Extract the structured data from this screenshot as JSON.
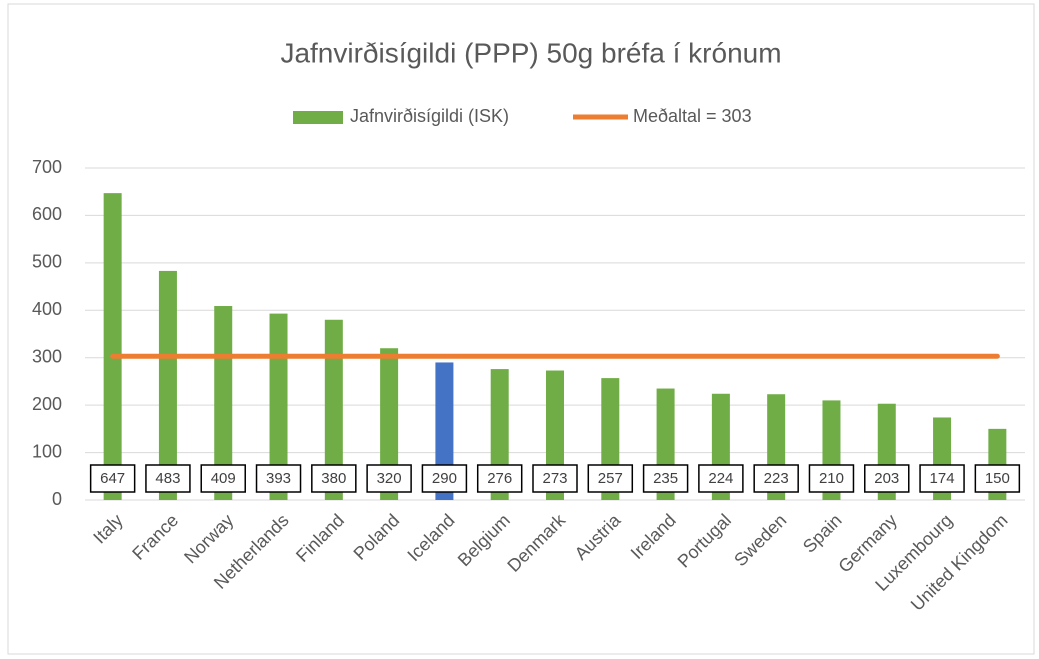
{
  "chart_data": {
    "type": "bar",
    "title": "Jafnvirðisígildi (PPP) 50g bréfa í krónum",
    "categories": [
      "Italy",
      "France",
      "Norway",
      "Netherlands",
      "Finland",
      "Poland",
      "Iceland",
      "Belgium",
      "Denmark",
      "Austria",
      "Ireland",
      "Portugal",
      "Sweden",
      "Spain",
      "Germany",
      "Luxembourg",
      "United Kingdom"
    ],
    "series": [
      {
        "name": "Jafnvirðisígildi (ISK)",
        "color": "#70ad47",
        "type": "bar",
        "colors": [
          "#70ad47",
          "#70ad47",
          "#70ad47",
          "#70ad47",
          "#70ad47",
          "#70ad47",
          "#4472c4",
          "#70ad47",
          "#70ad47",
          "#70ad47",
          "#70ad47",
          "#70ad47",
          "#70ad47",
          "#70ad47",
          "#70ad47",
          "#70ad47",
          "#70ad47"
        ],
        "values": [
          647,
          483,
          409,
          393,
          380,
          320,
          290,
          276,
          273,
          257,
          235,
          224,
          223,
          210,
          203,
          174,
          150
        ]
      },
      {
        "name": "Meðaltal = 303",
        "color": "#ed7d31",
        "type": "line",
        "values": [
          303,
          303,
          303,
          303,
          303,
          303,
          303,
          303,
          303,
          303,
          303,
          303,
          303,
          303,
          303,
          303,
          303
        ]
      }
    ],
    "ylim": [
      0,
      700
    ],
    "yticks": [
      0,
      100,
      200,
      300,
      400,
      500,
      600,
      700
    ],
    "grid": true,
    "legend": "top"
  }
}
